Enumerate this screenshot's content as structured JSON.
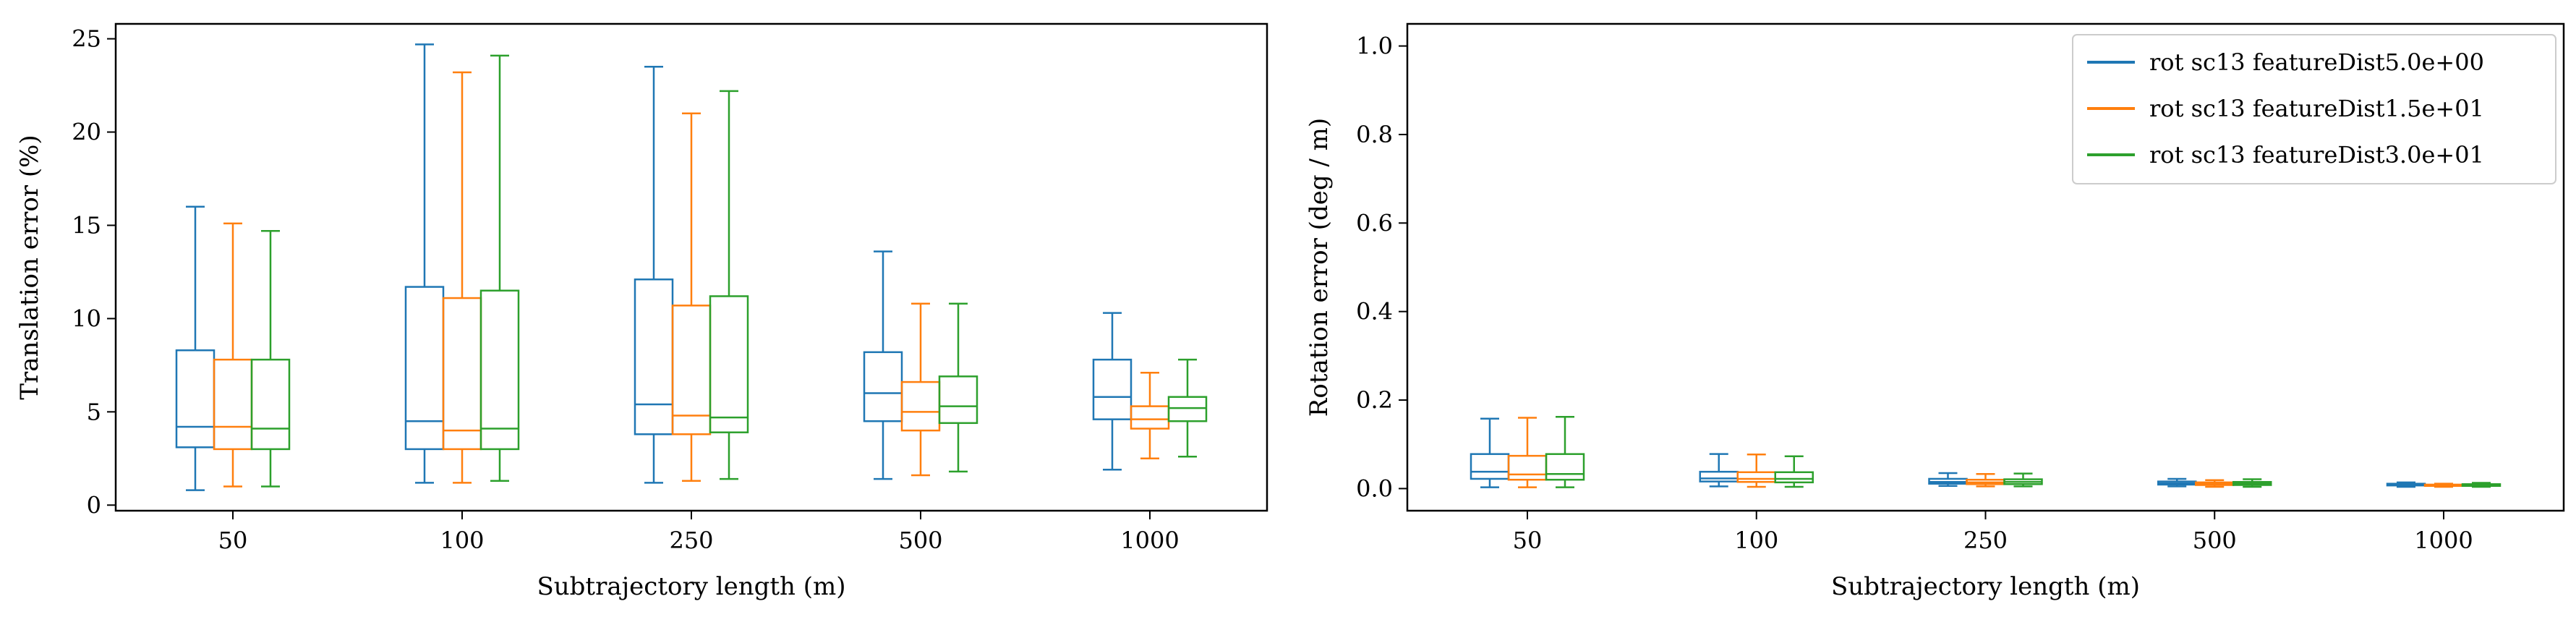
{
  "colors": {
    "series": [
      "#1f77b4",
      "#ff7f0e",
      "#2ca02c"
    ],
    "axis": "#000000",
    "background": "#ffffff"
  },
  "chart_data": [
    {
      "type": "box",
      "title": "",
      "xlabel": "Subtrajectory length (m)",
      "ylabel": "Translation error (%)",
      "categories": [
        "50",
        "100",
        "250",
        "500",
        "1000"
      ],
      "ylim": [
        -0.3,
        25.8
      ],
      "yticks": [
        0,
        5,
        10,
        15,
        20,
        25
      ],
      "ytick_labels": [
        "0",
        "5",
        "10",
        "15",
        "20",
        "25"
      ],
      "grid": false,
      "legend": null,
      "series": [
        {
          "boxes": [
            {
              "whislo": 0.8,
              "q1": 3.1,
              "med": 4.2,
              "q3": 8.3,
              "whishi": 16.0
            },
            {
              "whislo": 1.2,
              "q1": 3.0,
              "med": 4.5,
              "q3": 11.7,
              "whishi": 24.7
            },
            {
              "whislo": 1.2,
              "q1": 3.8,
              "med": 5.4,
              "q3": 12.1,
              "whishi": 23.5
            },
            {
              "whislo": 1.4,
              "q1": 4.5,
              "med": 6.0,
              "q3": 8.2,
              "whishi": 13.6
            },
            {
              "whislo": 1.9,
              "q1": 4.6,
              "med": 5.8,
              "q3": 7.8,
              "whishi": 10.3
            }
          ]
        },
        {
          "boxes": [
            {
              "whislo": 1.0,
              "q1": 3.0,
              "med": 4.2,
              "q3": 7.8,
              "whishi": 15.1
            },
            {
              "whislo": 1.2,
              "q1": 3.0,
              "med": 4.0,
              "q3": 11.1,
              "whishi": 23.2
            },
            {
              "whislo": 1.3,
              "q1": 3.8,
              "med": 4.8,
              "q3": 10.7,
              "whishi": 21.0
            },
            {
              "whislo": 1.6,
              "q1": 4.0,
              "med": 5.0,
              "q3": 6.6,
              "whishi": 10.8
            },
            {
              "whislo": 2.5,
              "q1": 4.1,
              "med": 4.6,
              "q3": 5.3,
              "whishi": 7.1
            }
          ]
        },
        {
          "boxes": [
            {
              "whislo": 1.0,
              "q1": 3.0,
              "med": 4.1,
              "q3": 7.8,
              "whishi": 14.7
            },
            {
              "whislo": 1.3,
              "q1": 3.0,
              "med": 4.1,
              "q3": 11.5,
              "whishi": 24.1
            },
            {
              "whislo": 1.4,
              "q1": 3.9,
              "med": 4.7,
              "q3": 11.2,
              "whishi": 22.2
            },
            {
              "whislo": 1.8,
              "q1": 4.4,
              "med": 5.3,
              "q3": 6.9,
              "whishi": 10.8
            },
            {
              "whislo": 2.6,
              "q1": 4.5,
              "med": 5.2,
              "q3": 5.8,
              "whishi": 7.8
            }
          ]
        }
      ]
    },
    {
      "type": "box",
      "title": "",
      "xlabel": "Subtrajectory length (m)",
      "ylabel": "Rotation error (deg / m)",
      "categories": [
        "50",
        "100",
        "250",
        "500",
        "1000"
      ],
      "ylim": [
        -0.05,
        1.05
      ],
      "yticks": [
        0,
        0.2,
        0.4,
        0.6,
        0.8,
        1.0
      ],
      "ytick_labels": [
        "0.0",
        "0.2",
        "0.4",
        "0.6",
        "0.8",
        "1.0"
      ],
      "grid": false,
      "legend": "top-right",
      "series": [
        {
          "name": "rot sc13 featureDist5.0e+00",
          "boxes": [
            {
              "whislo": 0.003,
              "q1": 0.022,
              "med": 0.038,
              "q3": 0.078,
              "whishi": 0.158
            },
            {
              "whislo": 0.005,
              "q1": 0.016,
              "med": 0.023,
              "q3": 0.038,
              "whishi": 0.078
            },
            {
              "whislo": 0.006,
              "q1": 0.011,
              "med": 0.015,
              "q3": 0.022,
              "whishi": 0.035
            },
            {
              "whislo": 0.005,
              "q1": 0.009,
              "med": 0.012,
              "q3": 0.016,
              "whishi": 0.022
            },
            {
              "whislo": 0.004,
              "q1": 0.007,
              "med": 0.009,
              "q3": 0.011,
              "whishi": 0.014
            }
          ]
        },
        {
          "name": "rot sc13 featureDist1.5e+01",
          "boxes": [
            {
              "whislo": 0.003,
              "q1": 0.02,
              "med": 0.032,
              "q3": 0.074,
              "whishi": 0.16
            },
            {
              "whislo": 0.004,
              "q1": 0.015,
              "med": 0.022,
              "q3": 0.037,
              "whishi": 0.077
            },
            {
              "whislo": 0.005,
              "q1": 0.01,
              "med": 0.014,
              "q3": 0.02,
              "whishi": 0.033
            },
            {
              "whislo": 0.004,
              "q1": 0.008,
              "med": 0.011,
              "q3": 0.014,
              "whishi": 0.019
            },
            {
              "whislo": 0.004,
              "q1": 0.006,
              "med": 0.007,
              "q3": 0.009,
              "whishi": 0.011
            }
          ]
        },
        {
          "name": "rot sc13 featureDist3.0e+01",
          "boxes": [
            {
              "whislo": 0.003,
              "q1": 0.02,
              "med": 0.033,
              "q3": 0.078,
              "whishi": 0.162
            },
            {
              "whislo": 0.004,
              "q1": 0.014,
              "med": 0.022,
              "q3": 0.037,
              "whishi": 0.073
            },
            {
              "whislo": 0.005,
              "q1": 0.01,
              "med": 0.015,
              "q3": 0.021,
              "whishi": 0.034
            },
            {
              "whislo": 0.004,
              "q1": 0.008,
              "med": 0.011,
              "q3": 0.015,
              "whishi": 0.021
            },
            {
              "whislo": 0.004,
              "q1": 0.006,
              "med": 0.008,
              "q3": 0.01,
              "whishi": 0.013
            }
          ]
        }
      ]
    }
  ]
}
